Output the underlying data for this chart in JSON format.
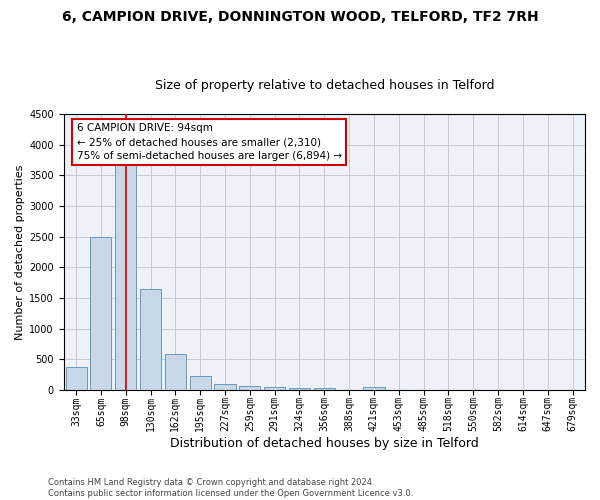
{
  "title1": "6, CAMPION DRIVE, DONNINGTON WOOD, TELFORD, TF2 7RH",
  "title2": "Size of property relative to detached houses in Telford",
  "xlabel": "Distribution of detached houses by size in Telford",
  "ylabel": "Number of detached properties",
  "footnote": "Contains HM Land Registry data © Crown copyright and database right 2024.\nContains public sector information licensed under the Open Government Licence v3.0.",
  "categories": [
    "33sqm",
    "65sqm",
    "98sqm",
    "130sqm",
    "162sqm",
    "195sqm",
    "227sqm",
    "259sqm",
    "291sqm",
    "324sqm",
    "356sqm",
    "388sqm",
    "421sqm",
    "453sqm",
    "485sqm",
    "518sqm",
    "550sqm",
    "582sqm",
    "614sqm",
    "647sqm",
    "679sqm"
  ],
  "values": [
    370,
    2500,
    3750,
    1640,
    590,
    225,
    105,
    65,
    45,
    35,
    25,
    0,
    55,
    0,
    0,
    0,
    0,
    0,
    0,
    0,
    0
  ],
  "bar_color": "#c8d8e8",
  "bar_edge_color": "#5b8db8",
  "highlight_index": 2,
  "highlight_color": "#cc0000",
  "annotation_line1": "6 CAMPION DRIVE: 94sqm",
  "annotation_line2": "← 25% of detached houses are smaller (2,310)",
  "annotation_line3": "75% of semi-detached houses are larger (6,894) →",
  "annotation_box_color": "#ffffff",
  "annotation_box_edge": "#cc0000",
  "ylim": [
    0,
    4500
  ],
  "yticks": [
    0,
    500,
    1000,
    1500,
    2000,
    2500,
    3000,
    3500,
    4000,
    4500
  ],
  "grid_color": "#c8c8d0",
  "bg_color": "#eef2f8",
  "title1_fontsize": 10,
  "title2_fontsize": 9,
  "xlabel_fontsize": 9,
  "ylabel_fontsize": 8,
  "tick_fontsize": 7,
  "annot_fontsize": 7.5
}
